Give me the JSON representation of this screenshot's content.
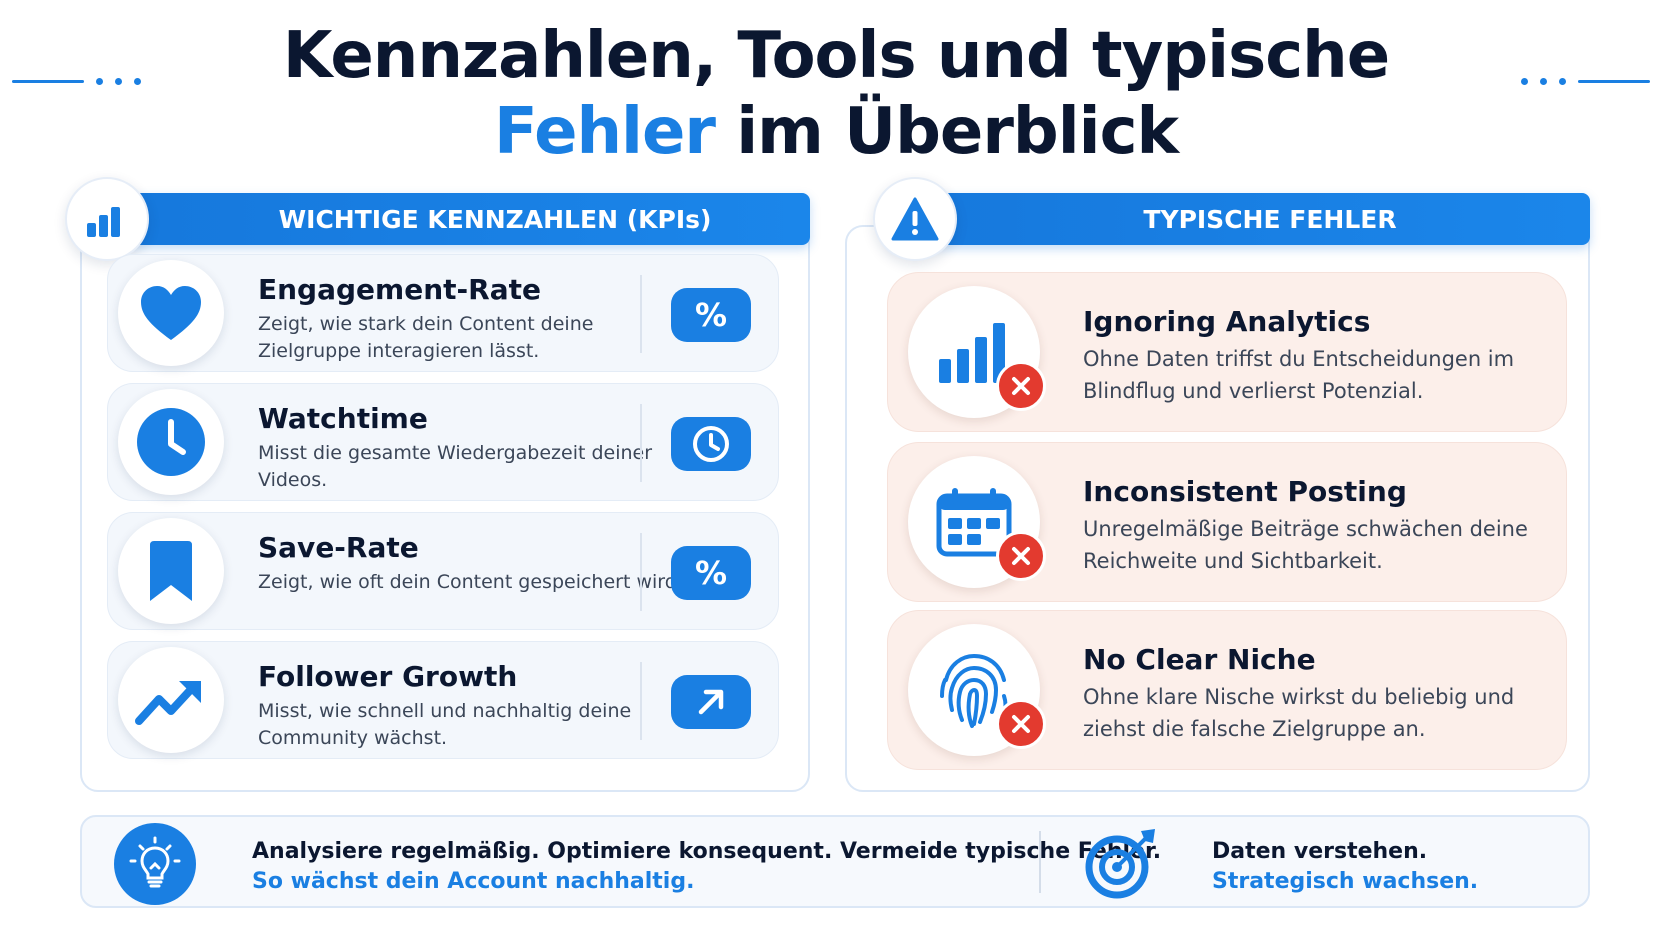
{
  "title": {
    "line1": "Kennzahlen, Tools und typische",
    "line2_accent": "Fehler",
    "line2_rest": " im Überblick"
  },
  "colors": {
    "accent": "#1a7fe2",
    "error": "#e33a2f",
    "error_row_bg": "#fcefea",
    "kpi_row_bg": "#f3f7fc"
  },
  "kpi_section": {
    "header": "WICHTIGE KENNZAHLEN (KPIs)",
    "icon": "bar-chart-icon",
    "items": [
      {
        "name": "Engagement-Rate",
        "description": "Zeigt, wie stark dein Content deine Zielgruppe interagieren lässt.",
        "icon": "heart-icon",
        "badge": "%"
      },
      {
        "name": "Watchtime",
        "description": "Misst die gesamte Wiedergabezeit deiner Videos.",
        "icon": "clock-icon",
        "badge_icon": "clock-outline-icon"
      },
      {
        "name": "Save-Rate",
        "description": "Zeigt, wie oft dein Content gespeichert wird.",
        "icon": "bookmark-icon",
        "badge": "%"
      },
      {
        "name": "Follower Growth",
        "description": "Misst, wie schnell und nachhaltig deine Community wächst.",
        "icon": "trend-up-icon",
        "badge_icon": "arrow-up-right-icon"
      }
    ]
  },
  "error_section": {
    "header": "TYPISCHE FEHLER",
    "icon": "warning-icon",
    "items": [
      {
        "name": "Ignoring Analytics",
        "description": "Ohne Daten triffst du Entscheidungen im Blindflug und verlierst Potenzial.",
        "icon": "bar-chart-icon"
      },
      {
        "name": "Inconsistent Posting",
        "description": "Unregelmäßige Beiträge schwächen deine Reichweite und Sichtbarkeit.",
        "icon": "calendar-icon"
      },
      {
        "name": "No Clear Niche",
        "description": "Ohne klare Nische wirkst du beliebig und ziehst die falsche Zielgruppe an.",
        "icon": "fingerprint-icon"
      }
    ]
  },
  "footer": {
    "left_line1": "Analysiere regelmäßig. Optimiere konsequent. Vermeide typische Fehler.",
    "left_line2": "So wächst dein Account nachhaltig.",
    "right_line1": "Daten verstehen.",
    "right_line2": "Strategisch wachsen.",
    "left_icon": "lightbulb-icon",
    "right_icon": "target-icon"
  }
}
